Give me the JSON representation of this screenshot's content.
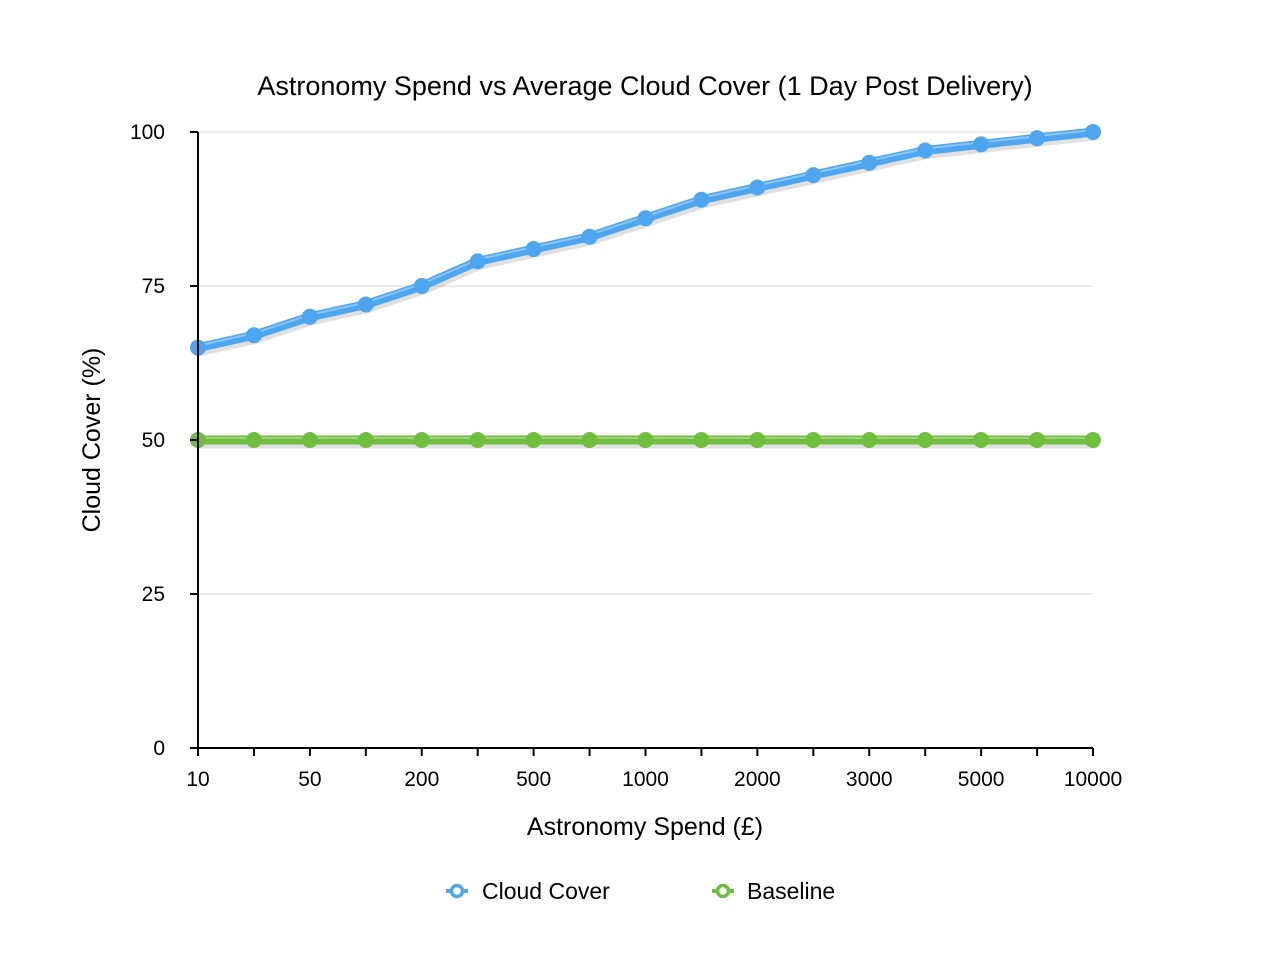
{
  "chart_data": {
    "type": "line",
    "title": "Astronomy Spend vs Average Cloud Cover (1 Day Post Delivery)",
    "xlabel": "Astronomy Spend (£)",
    "ylabel": "Cloud Cover (%)",
    "categories": [
      "10",
      "",
      "50",
      "",
      "200",
      "",
      "500",
      "",
      "1000",
      "",
      "2000",
      "",
      "3000",
      "",
      "5000",
      "",
      "10000"
    ],
    "ylim": [
      0,
      100
    ],
    "yticks": [
      0,
      25,
      50,
      75,
      100
    ],
    "grid": true,
    "legend_position": "bottom",
    "series": [
      {
        "name": "Cloud Cover",
        "color": "#4ea6f0",
        "values": [
          65,
          67,
          70,
          72,
          75,
          79,
          81,
          83,
          86,
          89,
          91,
          93,
          95,
          97,
          98,
          99,
          100
        ]
      },
      {
        "name": "Baseline",
        "color": "#6fbe3e",
        "values": [
          50,
          50,
          50,
          50,
          50,
          50,
          50,
          50,
          50,
          50,
          50,
          50,
          50,
          50,
          50,
          50,
          50
        ]
      }
    ]
  }
}
